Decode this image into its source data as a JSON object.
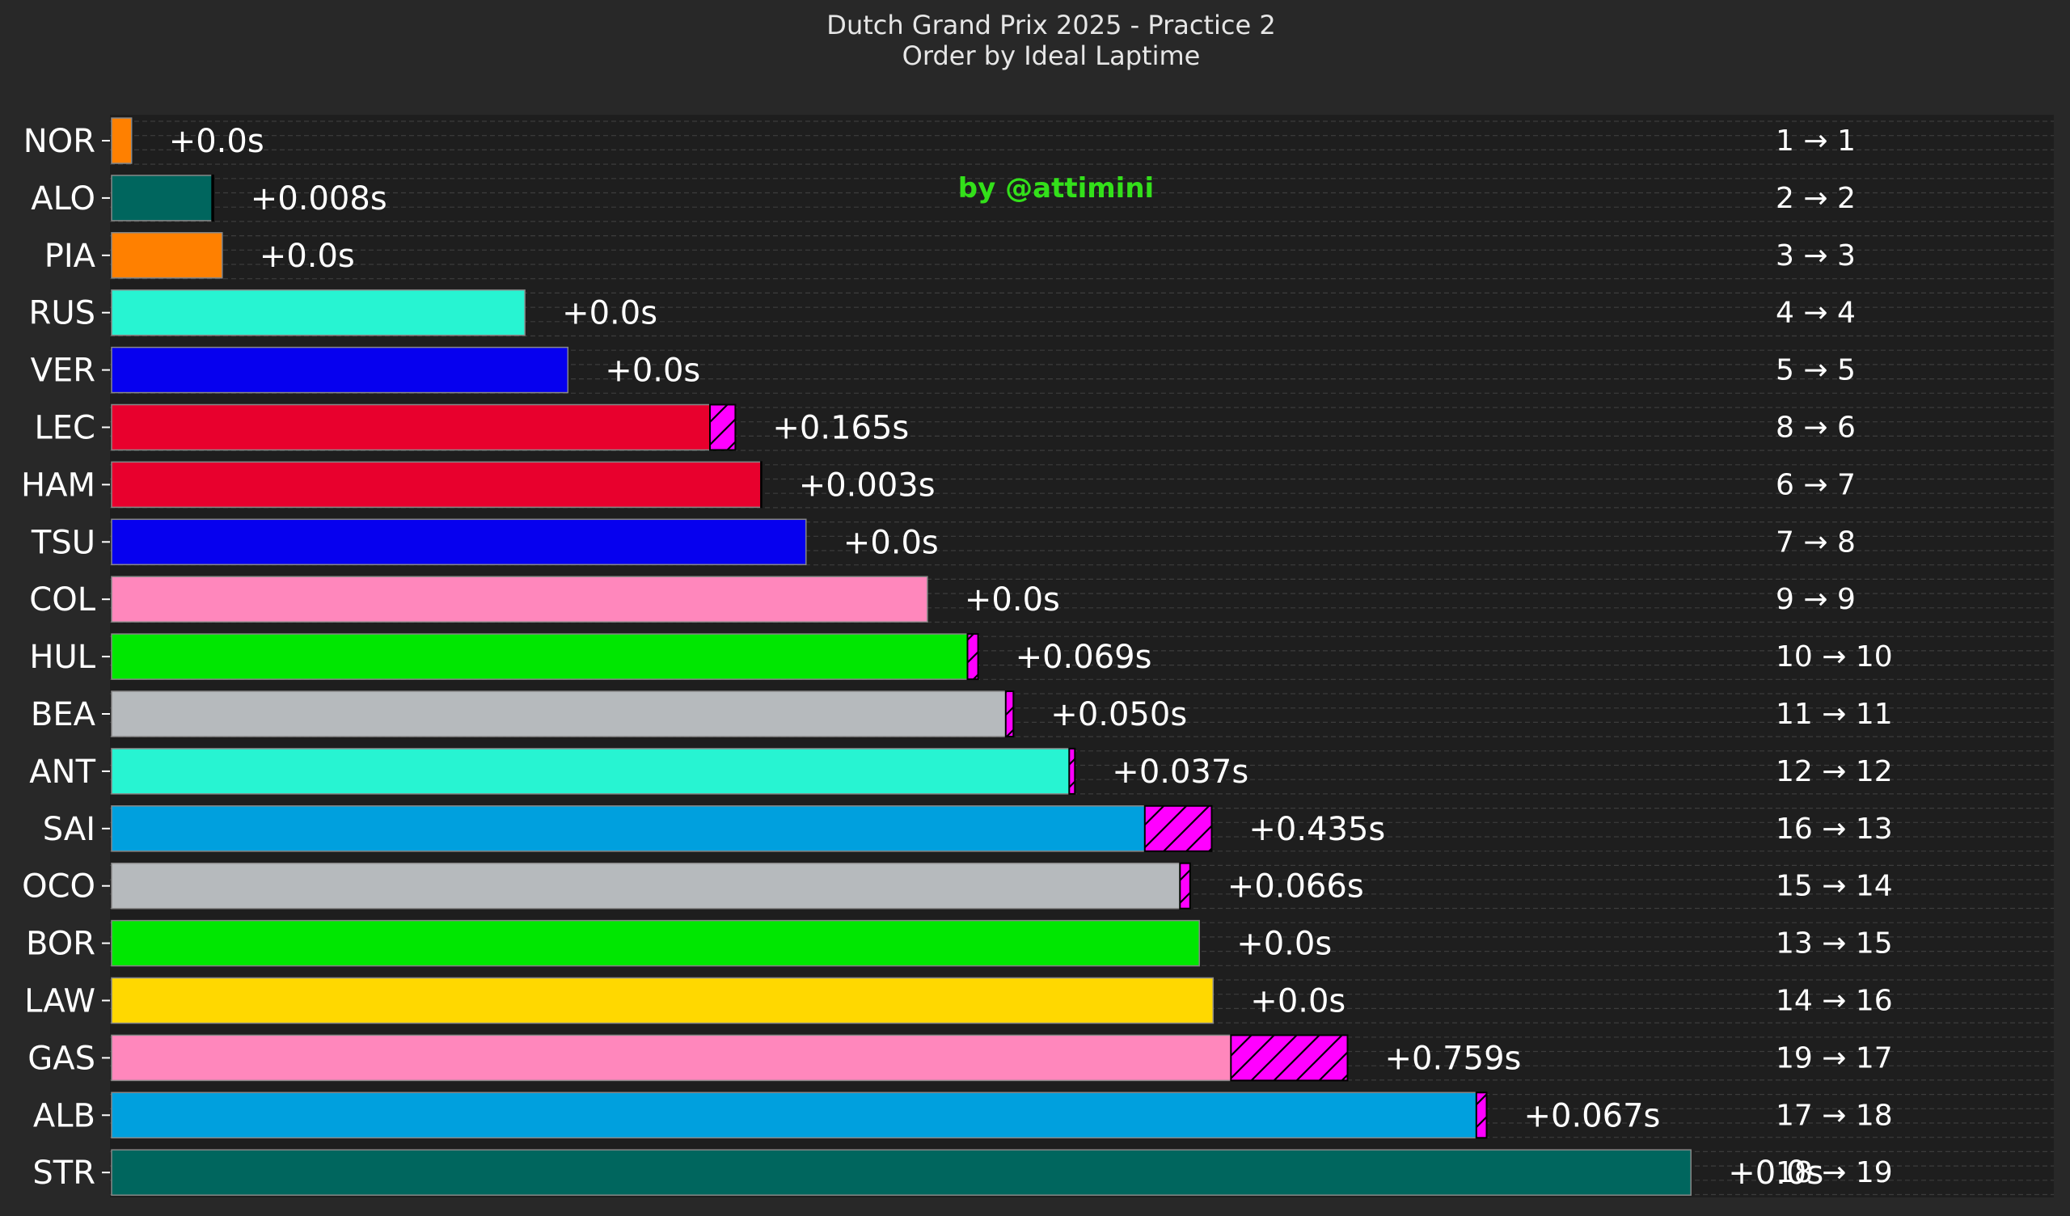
{
  "chart_data": {
    "type": "bar",
    "orientation": "horizontal",
    "title": "Dutch Grand Prix 2025 - Practice 2",
    "subtitle": "Order by Ideal Laptime",
    "watermark": "by @attimini",
    "grid": true,
    "colors": {
      "background": "#282828",
      "plot_background": "#1e1e1e",
      "gain_hatch": "#ff00ff",
      "text": "#ffffff",
      "watermark": "#33e01a"
    },
    "rows": [
      {
        "driver": "NOR",
        "value": 0.13,
        "gain": 0.0,
        "gain_label": "+0.0s",
        "rank_label": "1 → 1",
        "color": "#ff8000"
      },
      {
        "driver": "ALO",
        "value": 0.654,
        "gain": 0.008,
        "gain_label": "+0.008s",
        "rank_label": "2 → 2",
        "color": "#00665e"
      },
      {
        "driver": "PIA",
        "value": 0.72,
        "gain": 0.0,
        "gain_label": "+0.0s",
        "rank_label": "3 → 3",
        "color": "#ff8000"
      },
      {
        "driver": "RUS",
        "value": 2.69,
        "gain": 0.0,
        "gain_label": "+0.0s",
        "rank_label": "4 → 4",
        "color": "#27f4d2"
      },
      {
        "driver": "VER",
        "value": 2.97,
        "gain": 0.0,
        "gain_label": "+0.0s",
        "rank_label": "5 → 5",
        "color": "#0600ef"
      },
      {
        "driver": "LEC",
        "value": 3.895,
        "gain": 0.165,
        "gain_label": "+0.165s",
        "rank_label": "8 → 6",
        "color": "#e8002d"
      },
      {
        "driver": "HAM",
        "value": 4.227,
        "gain": 0.003,
        "gain_label": "+0.003s",
        "rank_label": "6 → 7",
        "color": "#e8002d"
      },
      {
        "driver": "TSU",
        "value": 4.52,
        "gain": 0.0,
        "gain_label": "+0.0s",
        "rank_label": "7 → 8",
        "color": "#0600ef"
      },
      {
        "driver": "COL",
        "value": 5.31,
        "gain": 0.0,
        "gain_label": "+0.0s",
        "rank_label": "9 → 9",
        "color": "#ff87bc"
      },
      {
        "driver": "HUL",
        "value": 5.571,
        "gain": 0.069,
        "gain_label": "+0.069s",
        "rank_label": "10 → 10",
        "color": "#00e701"
      },
      {
        "driver": "BEA",
        "value": 5.82,
        "gain": 0.05,
        "gain_label": "+0.050s",
        "rank_label": "11 → 11",
        "color": "#b6babd"
      },
      {
        "driver": "ANT",
        "value": 6.233,
        "gain": 0.037,
        "gain_label": "+0.037s",
        "rank_label": "12 → 12",
        "color": "#27f4d2"
      },
      {
        "driver": "SAI",
        "value": 6.725,
        "gain": 0.435,
        "gain_label": "+0.435s",
        "rank_label": "16 → 13",
        "color": "#00a0de"
      },
      {
        "driver": "OCO",
        "value": 6.954,
        "gain": 0.066,
        "gain_label": "+0.066s",
        "rank_label": "15 → 14",
        "color": "#b6babd"
      },
      {
        "driver": "BOR",
        "value": 7.08,
        "gain": 0.0,
        "gain_label": "+0.0s",
        "rank_label": "13 → 15",
        "color": "#00e701"
      },
      {
        "driver": "LAW",
        "value": 7.17,
        "gain": 0.0,
        "gain_label": "+0.0s",
        "rank_label": "14 → 16",
        "color": "#ffd800"
      },
      {
        "driver": "GAS",
        "value": 7.286,
        "gain": 0.759,
        "gain_label": "+0.759s",
        "rank_label": "19 → 17",
        "color": "#ff87bc"
      },
      {
        "driver": "ALB",
        "value": 8.883,
        "gain": 0.067,
        "gain_label": "+0.067s",
        "rank_label": "17 → 18",
        "color": "#00a0de"
      },
      {
        "driver": "STR",
        "value": 10.28,
        "gain": 0.0,
        "gain_label": "+0.0s",
        "rank_label": "18 → 19",
        "color": "#00665e"
      }
    ]
  }
}
